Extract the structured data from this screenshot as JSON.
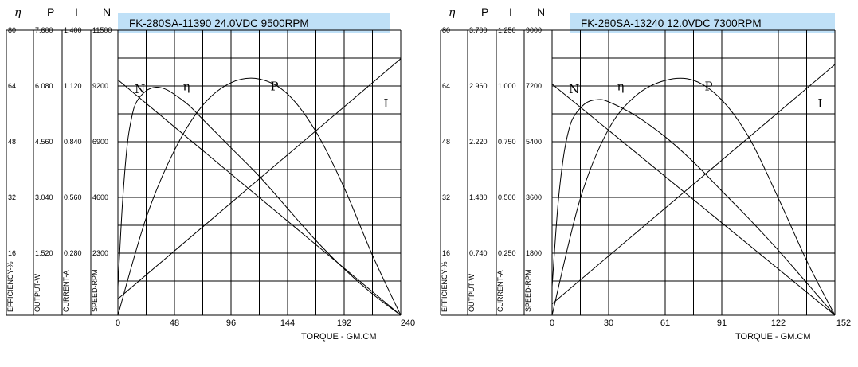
{
  "colors": {
    "title_band": "#bfe0f7",
    "grid": "#000000",
    "curve": "#000000",
    "background": "#ffffff"
  },
  "chart_data": [
    {
      "type": "line",
      "title": "FK-280SA-11390   24.0VDC  9500RPM",
      "header_symbols": [
        "η",
        "P",
        "I",
        "N"
      ],
      "scale_columns": [
        {
          "symbol": "η",
          "axis_label": "EFFICIENCY-%",
          "ticks": [
            "80",
            "64",
            "48",
            "32",
            "16"
          ],
          "max": 80
        },
        {
          "symbol": "P",
          "axis_label": "OUTPUT-W",
          "ticks": [
            "7.600",
            "6.080",
            "4.560",
            "3.040",
            "1.520"
          ],
          "max": 7.6
        },
        {
          "symbol": "I",
          "axis_label": "CURRENT-A",
          "ticks": [
            "1.400",
            "1.120",
            "0.840",
            "0.560",
            "0.280"
          ],
          "max": 1.4
        },
        {
          "symbol": "N",
          "axis_label": "SPEED-RPM",
          "ticks": [
            "11500",
            "9200",
            "6900",
            "4600",
            "2300"
          ],
          "max": 11500
        }
      ],
      "xlabel": "TORQUE - GM.CM",
      "xticks": [
        "0",
        "48",
        "96",
        "144",
        "192",
        "240"
      ],
      "xlim": [
        0,
        240
      ],
      "grid": true,
      "series": [
        {
          "name": "N",
          "x": [
            0,
            240
          ],
          "y": [
            9500,
            0
          ]
        },
        {
          "name": "I",
          "x": [
            0,
            240
          ],
          "y": [
            0.08,
            1.26
          ]
        },
        {
          "name": "P",
          "x": [
            0,
            24,
            48,
            72,
            96,
            120,
            144,
            168,
            192,
            216,
            240
          ],
          "y": [
            0,
            2.6,
            4.4,
            5.6,
            6.2,
            6.3,
            5.9,
            4.9,
            3.4,
            1.6,
            0
          ]
        },
        {
          "name": "η",
          "x": [
            0,
            4,
            8,
            12,
            16,
            24,
            32,
            40,
            48,
            60,
            72,
            96,
            120,
            144,
            168,
            192,
            216,
            240
          ],
          "y": [
            8,
            32,
            48,
            56,
            60,
            63,
            64,
            63.5,
            62,
            59,
            55,
            47,
            39,
            30,
            21,
            13,
            6,
            0
          ]
        }
      ],
      "curve_labels": [
        "N",
        "η",
        "P",
        "I"
      ]
    },
    {
      "type": "line",
      "title": "FK-280SA-13240    12.0VDC  7300RPM",
      "header_symbols": [
        "η",
        "P",
        "I",
        "N"
      ],
      "scale_columns": [
        {
          "symbol": "η",
          "axis_label": "EFFICIENCY-%",
          "ticks": [
            "80",
            "64",
            "48",
            "32",
            "16"
          ],
          "max": 80
        },
        {
          "symbol": "P",
          "axis_label": "OUTPUT-W",
          "ticks": [
            "3.700",
            "2.960",
            "2.220",
            "1.480",
            "0.740"
          ],
          "max": 3.7
        },
        {
          "symbol": "I",
          "axis_label": "CURRENT-A",
          "ticks": [
            "1.250",
            "1.000",
            "0.750",
            "0.500",
            "0.250"
          ],
          "max": 1.25
        },
        {
          "symbol": "N",
          "axis_label": "SPEED-RPM",
          "ticks": [
            "9000",
            "7200",
            "5400",
            "3600",
            "1800"
          ],
          "max": 9000
        }
      ],
      "xlabel": "TORQUE - GM.CM",
      "xticks": [
        "0",
        "30",
        "61",
        "91",
        "122",
        "152"
      ],
      "xlim": [
        0,
        152
      ],
      "grid": true,
      "series": [
        {
          "name": "N",
          "x": [
            0,
            152
          ],
          "y": [
            7300,
            0
          ]
        },
        {
          "name": "I",
          "x": [
            0,
            152
          ],
          "y": [
            0.05,
            1.1
          ]
        },
        {
          "name": "P",
          "x": [
            0,
            15,
            30,
            45,
            61,
            76,
            91,
            106,
            122,
            137,
            152
          ],
          "y": [
            0,
            1.5,
            2.4,
            2.85,
            3.05,
            3.05,
            2.8,
            2.3,
            1.5,
            0.7,
            0
          ]
        },
        {
          "name": "η",
          "x": [
            0,
            3,
            6,
            9,
            12,
            18,
            24,
            30,
            45,
            61,
            76,
            91,
            106,
            122,
            137,
            152
          ],
          "y": [
            8,
            30,
            44,
            52,
            56,
            59.5,
            60.5,
            60,
            56,
            50,
            43,
            35,
            27,
            18,
            9,
            0
          ]
        }
      ],
      "curve_labels": [
        "N",
        "η",
        "P",
        "I"
      ]
    }
  ]
}
